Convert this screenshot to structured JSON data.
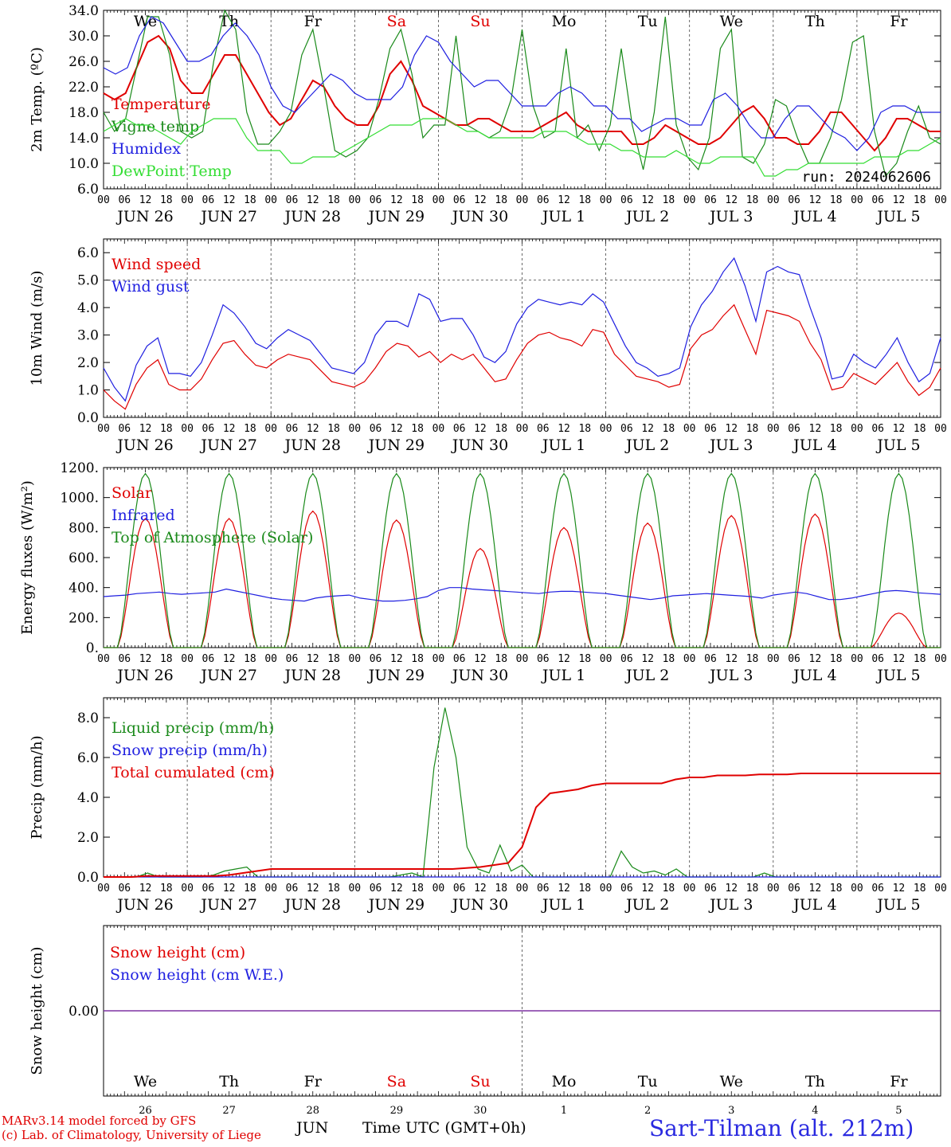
{
  "run_label": "run: 2024062606",
  "footer": {
    "model": "MARv3.14 model forced by GFS",
    "copyright": "(c) Lab. of Climatology, University of Liege",
    "month": "JUN",
    "time_axis": "Time UTC (GMT+0h)",
    "station": "Sart-Tilman (alt. 212m)"
  },
  "days": {
    "weekday": [
      "We",
      "Th",
      "Fr",
      "Sa",
      "Su",
      "Mo",
      "Tu",
      "We",
      "Th",
      "Fr"
    ],
    "weekend_flags": [
      false,
      false,
      false,
      true,
      true,
      false,
      false,
      false,
      false,
      false
    ],
    "date_labels": [
      "JUN 26",
      "JUN 27",
      "JUN 28",
      "JUN 29",
      "JUN 30",
      "JUL  1",
      "JUL  2",
      "JUL  3",
      "JUL  4",
      "JUL  5"
    ],
    "day_numbers": [
      "26",
      "27",
      "28",
      "29",
      "30",
      "1",
      "2",
      "3",
      "4",
      "5"
    ],
    "hour_ticks": [
      "00",
      "06",
      "12",
      "18"
    ],
    "final_tick": "00"
  },
  "colors": {
    "temperature": "#e00000",
    "vigne": "#1a8a1a",
    "humidex": "#1f1fe0",
    "dewpoint": "#33dd33",
    "weekend": "#e00000",
    "snow": "#7a2aa0"
  },
  "chart_data": [
    {
      "type": "line",
      "ylabel": "2m Temp. (ºC)",
      "ylim": [
        6,
        34
      ],
      "yticks": [
        "6.0",
        "10.0",
        "14.0",
        "18.0",
        "22.0",
        "26.0",
        "30.0",
        "34.0"
      ],
      "x": "3-hourly from 2024-06-26 00 UTC to 2024-07-06 00 UTC",
      "series": [
        {
          "name": "Temperature",
          "values": [
            21,
            20,
            21,
            25,
            29,
            30,
            28,
            23,
            21,
            21,
            24,
            27,
            27,
            24,
            21,
            18,
            16,
            17,
            20,
            23,
            22,
            19,
            17,
            16,
            16,
            19,
            24,
            26,
            23,
            19,
            18,
            17,
            16,
            16,
            17,
            17,
            16,
            15,
            15,
            15,
            16,
            17,
            18,
            16,
            15,
            15,
            15,
            15,
            13,
            13,
            14,
            16,
            15,
            14,
            13,
            13,
            14,
            16,
            18,
            19,
            17,
            14,
            14,
            13,
            13,
            15,
            18,
            18,
            16,
            14,
            12,
            14,
            17,
            17,
            16,
            15,
            15
          ]
        },
        {
          "name": "Vigne temp",
          "values": [
            18,
            15,
            17,
            25,
            33,
            33,
            27,
            15,
            14,
            15,
            26,
            34,
            31,
            18,
            13,
            13,
            15,
            18,
            27,
            31,
            22,
            12,
            11,
            12,
            14,
            20,
            28,
            31,
            24,
            14,
            16,
            16,
            30,
            16,
            15,
            14,
            15,
            20,
            31,
            19,
            14,
            15,
            28,
            14,
            16,
            12,
            16,
            28,
            16,
            9,
            18,
            33,
            16,
            11,
            9,
            14,
            28,
            31,
            11,
            10,
            13,
            20,
            19,
            14,
            10,
            10,
            14,
            20,
            29,
            30,
            15,
            8,
            10,
            15,
            19,
            14,
            13
          ]
        },
        {
          "name": "Humidex",
          "values": [
            25,
            24,
            25,
            30,
            33,
            32,
            29,
            26,
            26,
            27,
            30,
            32,
            30,
            27,
            22,
            19,
            18,
            20,
            22,
            24,
            23,
            21,
            20,
            20,
            20,
            22,
            27,
            30,
            29,
            26,
            24,
            22,
            23,
            23,
            21,
            19,
            19,
            19,
            21,
            22,
            21,
            19,
            19,
            17,
            17,
            15,
            16,
            17,
            17,
            16,
            16,
            20,
            21,
            19,
            16,
            14,
            14,
            17,
            19,
            19,
            17,
            15,
            14,
            12,
            14,
            18,
            19,
            19,
            18,
            18,
            18
          ]
        },
        {
          "name": "DewPoint Temp",
          "values": [
            15,
            16,
            17,
            16,
            16,
            15,
            14,
            13,
            15,
            16,
            17,
            17,
            17,
            14,
            12,
            12,
            12,
            10,
            10,
            11,
            11,
            11,
            12,
            13,
            14,
            15,
            16,
            16,
            16,
            17,
            17,
            17,
            16,
            15,
            15,
            14,
            14,
            14,
            14,
            14,
            15,
            15,
            15,
            14,
            13,
            13,
            13,
            12,
            12,
            11,
            11,
            11,
            12,
            11,
            10,
            10,
            11,
            11,
            11,
            11,
            8,
            8,
            9,
            9,
            10,
            10,
            10,
            10,
            10,
            10,
            11,
            11,
            11,
            12,
            12,
            13,
            14
          ]
        }
      ]
    },
    {
      "type": "line",
      "ylabel": "10m Wind (m/s)",
      "ylim": [
        0,
        6.5
      ],
      "yticks": [
        "0.0",
        "1.0",
        "2.0",
        "3.0",
        "4.0",
        "5.0",
        "6.0"
      ],
      "series": [
        {
          "name": "Wind speed",
          "values": [
            1.0,
            0.6,
            0.3,
            1.2,
            1.8,
            2.1,
            1.2,
            1.0,
            1.0,
            1.4,
            2.1,
            2.7,
            2.8,
            2.3,
            1.9,
            1.8,
            2.1,
            2.3,
            2.2,
            2.1,
            1.7,
            1.3,
            1.2,
            1.1,
            1.3,
            1.8,
            2.4,
            2.7,
            2.6,
            2.2,
            2.4,
            2.0,
            2.3,
            2.1,
            2.3,
            1.8,
            1.3,
            1.4,
            2.1,
            2.7,
            3.0,
            3.1,
            2.9,
            2.8,
            2.6,
            3.2,
            3.1,
            2.3,
            1.9,
            1.5,
            1.4,
            1.3,
            1.1,
            1.2,
            2.5,
            3.0,
            3.2,
            3.7,
            4.1,
            3.2,
            2.3,
            3.9,
            3.8,
            3.7,
            3.5,
            2.7,
            2.1,
            1.0,
            1.1,
            1.6,
            1.4,
            1.2,
            1.6,
            2.0,
            1.3,
            0.8,
            1.1,
            1.8
          ]
        },
        {
          "name": "Wind gust",
          "values": [
            1.8,
            1.1,
            0.6,
            1.9,
            2.6,
            2.9,
            1.6,
            1.6,
            1.5,
            2.0,
            3.0,
            4.1,
            3.8,
            3.3,
            2.7,
            2.5,
            2.9,
            3.2,
            3.0,
            2.8,
            2.3,
            1.8,
            1.7,
            1.6,
            2.0,
            3.0,
            3.5,
            3.5,
            3.3,
            4.5,
            4.3,
            3.5,
            3.6,
            3.6,
            3.0,
            2.2,
            2.0,
            2.4,
            3.4,
            4.0,
            4.3,
            4.2,
            4.1,
            4.2,
            4.1,
            4.5,
            4.2,
            3.4,
            2.6,
            2.0,
            1.8,
            1.5,
            1.6,
            1.8,
            3.3,
            4.1,
            4.6,
            5.3,
            5.8,
            4.8,
            3.5,
            5.3,
            5.5,
            5.3,
            5.2,
            4.0,
            2.9,
            1.4,
            1.5,
            2.3,
            2.0,
            1.8,
            2.3,
            2.9,
            2.0,
            1.3,
            1.6,
            2.9
          ]
        }
      ]
    },
    {
      "type": "line",
      "ylabel": "Energy fluxes (W/m²)",
      "ylim": [
        0,
        1200
      ],
      "yticks": [
        "0.",
        "200.",
        "400.",
        "600.",
        "800.",
        "1000.",
        "1200."
      ],
      "series": [
        {
          "name": "Solar",
          "values_daily_peak": [
            860,
            860,
            910,
            850,
            660,
            800,
            830,
            880,
            890,
            230
          ]
        },
        {
          "name": "Infrared",
          "values": [
            340,
            345,
            350,
            360,
            365,
            370,
            360,
            355,
            360,
            365,
            370,
            390,
            375,
            360,
            345,
            330,
            320,
            315,
            310,
            330,
            340,
            345,
            350,
            330,
            320,
            310,
            310,
            315,
            325,
            340,
            380,
            400,
            400,
            390,
            385,
            380,
            375,
            370,
            365,
            360,
            370,
            375,
            375,
            370,
            365,
            360,
            350,
            340,
            330,
            320,
            330,
            345,
            350,
            355,
            360,
            355,
            350,
            345,
            340,
            330,
            350,
            360,
            370,
            360,
            340,
            320,
            320,
            330,
            345,
            360,
            375,
            380,
            375,
            365,
            360,
            355
          ]
        },
        {
          "name": "Top of Atmosphere (Solar)",
          "values_daily_peak": [
            1160,
            1160,
            1160,
            1160,
            1160,
            1160,
            1160,
            1160,
            1160,
            1160
          ]
        }
      ]
    },
    {
      "type": "line",
      "ylabel": "Precip (mm/h)",
      "ylim": [
        0,
        9
      ],
      "yticks": [
        "0.0",
        "2.0",
        "4.0",
        "6.0",
        "8.0"
      ],
      "series": [
        {
          "name": "Liquid precip (mm/h)",
          "values": [
            0,
            0,
            0,
            0,
            0.2,
            0,
            0,
            0,
            0,
            0,
            0.1,
            0.3,
            0.4,
            0.5,
            0,
            0,
            0,
            0,
            0,
            0,
            0,
            0,
            0,
            0,
            0,
            0,
            0,
            0.1,
            0.2,
            0,
            5.5,
            8.5,
            6.0,
            1.5,
            0.4,
            0.2,
            1.6,
            0.3,
            0.6,
            0,
            0,
            0,
            0,
            0,
            0,
            0,
            0,
            1.3,
            0.5,
            0.2,
            0.3,
            0.1,
            0.4,
            0,
            0,
            0,
            0,
            0,
            0,
            0,
            0.2,
            0,
            0,
            0,
            0,
            0,
            0,
            0,
            0,
            0,
            0,
            0,
            0,
            0,
            0,
            0,
            0
          ]
        },
        {
          "name": "Snow precip (mm/h)",
          "values": [
            0,
            0,
            0,
            0,
            0,
            0,
            0,
            0,
            0,
            0
          ]
        },
        {
          "name": "Total cumulated (cm)",
          "values": [
            0,
            0,
            0,
            0.05,
            0.05,
            0.05,
            0.05,
            0.05,
            0.05,
            0.1,
            0.2,
            0.3,
            0.4,
            0.4,
            0.4,
            0.4,
            0.4,
            0.4,
            0.4,
            0.4,
            0.4,
            0.4,
            0.4,
            0.4,
            0.4,
            0.4,
            0.45,
            0.5,
            0.6,
            0.7,
            1.5,
            3.5,
            4.2,
            4.3,
            4.4,
            4.6,
            4.7,
            4.7,
            4.7,
            4.7,
            4.7,
            4.9,
            5.0,
            5.0,
            5.1,
            5.1,
            5.1,
            5.15,
            5.15,
            5.15,
            5.2,
            5.2,
            5.2,
            5.2,
            5.2,
            5.2,
            5.2,
            5.2,
            5.2,
            5.2,
            5.2
          ]
        }
      ]
    },
    {
      "type": "line",
      "ylabel": "Snow height (cm)",
      "yticks": [
        "0.00"
      ],
      "series": [
        {
          "name": "Snow height (cm)",
          "values": [
            0,
            0
          ]
        },
        {
          "name": "Snow height (cm W.E.)",
          "values": [
            0,
            0
          ]
        }
      ]
    }
  ]
}
